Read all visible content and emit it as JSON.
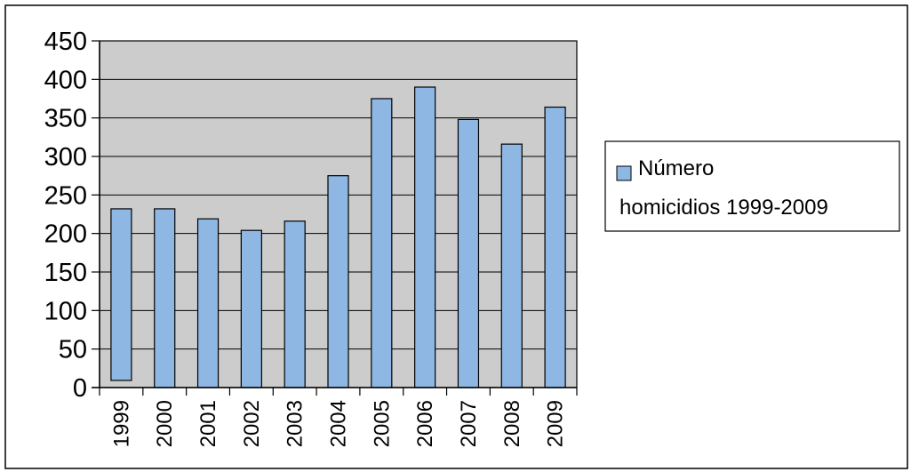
{
  "chart_data": {
    "type": "bar",
    "categories": [
      "1999",
      "2000",
      "2001",
      "2002",
      "2003",
      "2004",
      "2005",
      "2006",
      "2007",
      "2008",
      "2009"
    ],
    "series": [
      {
        "name": "Número homicidios 1999-2009",
        "values": [
          232,
          232,
          219,
          204,
          216,
          275,
          375,
          390,
          348,
          316,
          364
        ]
      }
    ],
    "ylim": [
      0,
      450
    ],
    "yticks": [
      0,
      50,
      100,
      150,
      200,
      250,
      300,
      350,
      400,
      450
    ],
    "grid": true,
    "legend_position": "right",
    "legend_lines": [
      "Número",
      "homicidios 1999-2009"
    ],
    "colors": {
      "bar_fill": "#8eb8e3",
      "bar_stroke": "#000000",
      "plot_background": "#cccccc",
      "gridline": "#000000"
    }
  }
}
